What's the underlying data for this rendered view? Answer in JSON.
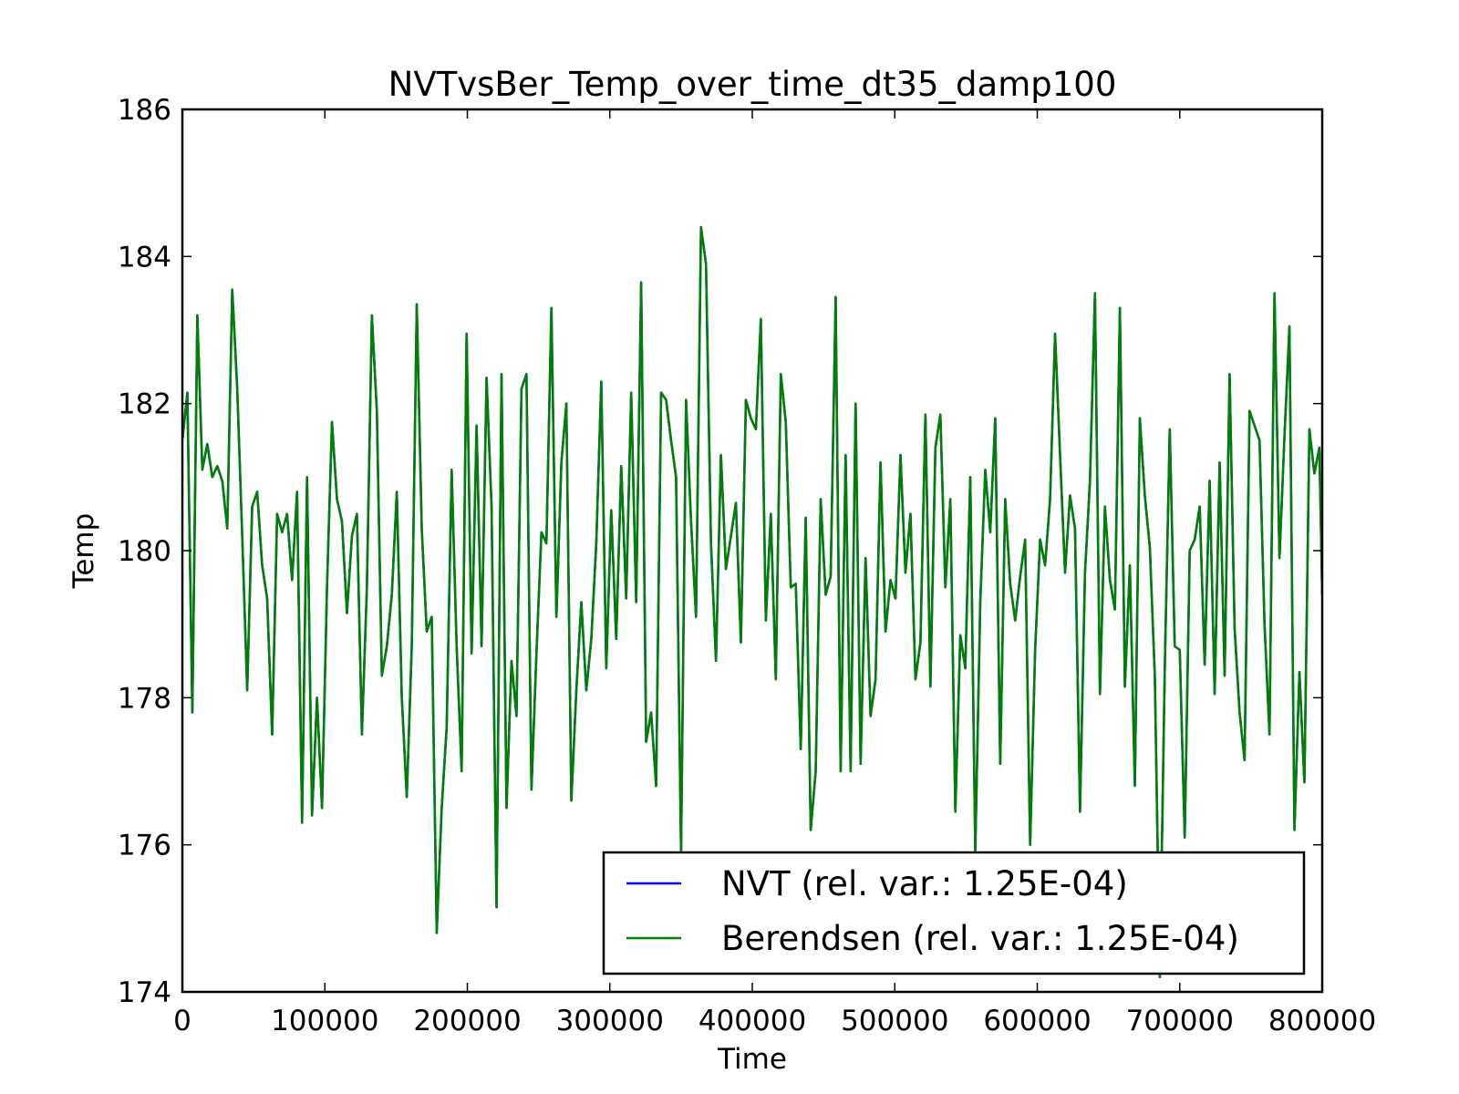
{
  "chart_data": {
    "type": "line",
    "title": "NVTvsBer_Temp_over_time_dt35_damp100",
    "xlabel": "Time",
    "ylabel": "Temp",
    "xlim": [
      0,
      800000
    ],
    "ylim": [
      174,
      186
    ],
    "xticks": [
      0,
      100000,
      200000,
      300000,
      400000,
      500000,
      600000,
      700000,
      800000
    ],
    "xtick_labels": [
      "0",
      "100000",
      "200000",
      "300000",
      "400000",
      "500000",
      "600000",
      "700000",
      "800000"
    ],
    "yticks": [
      174,
      176,
      178,
      180,
      182,
      184,
      186
    ],
    "ytick_labels": [
      "174",
      "176",
      "178",
      "180",
      "182",
      "184",
      "186"
    ],
    "grid": false,
    "legend_position": "lower-right",
    "x": [
      0,
      3500,
      7000,
      10500,
      14000,
      17500,
      21000,
      24500,
      28000,
      31500,
      35000,
      38500,
      42000,
      45500,
      49000,
      52500,
      56000,
      59500,
      63000,
      66500,
      70000,
      73500,
      77000,
      80500,
      84000,
      87500,
      91000,
      94500,
      98000,
      101500,
      105000,
      108500,
      112000,
      115500,
      119000,
      122500,
      126000,
      129500,
      133000,
      136500,
      140000,
      143500,
      147000,
      150500,
      154000,
      157500,
      161000,
      164500,
      168000,
      171500,
      175000,
      178500,
      182000,
      185500,
      189000,
      192500,
      196000,
      199500,
      203000,
      206500,
      210000,
      213500,
      217000,
      220500,
      224000,
      227500,
      231000,
      234500,
      238000,
      241500,
      245000,
      248500,
      252000,
      255500,
      259000,
      262500,
      266000,
      269500,
      273000,
      276500,
      280000,
      283500,
      287000,
      290500,
      294000,
      297500,
      301000,
      304500,
      308000,
      311500,
      315000,
      318500,
      322000,
      325500,
      329000,
      332500,
      336000,
      339500,
      343000,
      346500,
      350000,
      353500,
      357000,
      360500,
      364000,
      367500,
      371000,
      374500,
      378000,
      381500,
      385000,
      388500,
      392000,
      395500,
      399000,
      402500,
      406000,
      409500,
      413000,
      416500,
      420000,
      423500,
      427000,
      430500,
      434000,
      437500,
      441000,
      444500,
      448000,
      451500,
      455000,
      458500,
      462000,
      465500,
      469000,
      472500,
      476000,
      479500,
      483000,
      486500,
      490000,
      493500,
      497000,
      500500,
      504000,
      507500,
      511000,
      514500,
      518000,
      521500,
      525000,
      528500,
      532000,
      535500,
      539000,
      542500,
      546000,
      549500,
      553000,
      556500,
      560000,
      563500,
      567000,
      570500,
      574000,
      577500,
      581000,
      584500,
      588000,
      591500,
      595000,
      598500,
      602000,
      605500,
      609000,
      612500,
      616000,
      619500,
      623000,
      626500,
      630000,
      633500,
      637000,
      640500,
      644000,
      647500,
      651000,
      654500,
      658000,
      661500,
      665000,
      668500,
      672000,
      675500,
      679000,
      682500,
      686000,
      689500,
      693000,
      696500,
      700000,
      703500,
      707000,
      710500,
      714000,
      717500,
      721000,
      724500,
      728000,
      731500,
      735000,
      738500,
      742000,
      745500,
      749000,
      752500,
      756000,
      759500,
      763000,
      766500,
      770000,
      773500,
      777000,
      780500,
      784000,
      787500,
      791000,
      794500,
      798000,
      800000
    ],
    "series": [
      {
        "name": "NVT (rel. var.: 1.25E-04)",
        "color": "#0000ff",
        "values": [
          181.5,
          182.15,
          177.8,
          183.2,
          181.1,
          181.45,
          181.0,
          181.15,
          180.95,
          180.3,
          183.55,
          182.2,
          180.2,
          178.1,
          180.6,
          180.8,
          179.8,
          179.35,
          177.5,
          180.5,
          180.25,
          180.5,
          179.6,
          180.8,
          176.3,
          181.0,
          176.4,
          178.0,
          176.5,
          179.5,
          181.75,
          180.7,
          180.4,
          179.15,
          180.2,
          180.5,
          177.5,
          179.5,
          183.2,
          181.9,
          178.3,
          178.7,
          179.4,
          180.8,
          178.0,
          176.65,
          178.7,
          183.35,
          180.3,
          178.9,
          179.1,
          174.8,
          176.5,
          177.6,
          181.1,
          178.7,
          177.0,
          182.95,
          178.6,
          181.7,
          178.7,
          182.35,
          180.6,
          175.15,
          182.4,
          176.5,
          178.5,
          177.75,
          182.2,
          182.4,
          176.75,
          178.6,
          180.25,
          180.1,
          183.3,
          179.1,
          181.2,
          182.0,
          176.6,
          178.1,
          179.3,
          178.1,
          178.8,
          180.1,
          182.3,
          178.4,
          180.55,
          178.8,
          181.15,
          179.35,
          182.15,
          179.3,
          183.65,
          177.4,
          177.8,
          176.8,
          182.15,
          182.05,
          181.5,
          181.0,
          175.9,
          182.05,
          180.4,
          179.1,
          184.4,
          183.9,
          180.1,
          178.5,
          181.3,
          179.75,
          180.2,
          180.65,
          178.75,
          182.05,
          181.8,
          181.65,
          183.15,
          179.05,
          180.5,
          178.25,
          182.4,
          181.75,
          179.5,
          179.55,
          177.3,
          180.45,
          176.2,
          177.0,
          180.7,
          179.4,
          179.65,
          183.45,
          177.0,
          181.3,
          177.0,
          182.0,
          177.1,
          179.9,
          177.75,
          178.25,
          181.2,
          178.9,
          179.6,
          179.35,
          181.3,
          179.7,
          180.5,
          178.25,
          178.75,
          181.85,
          178.15,
          181.4,
          181.85,
          179.5,
          180.7,
          176.45,
          178.85,
          178.4,
          181.0,
          175.9,
          179.3,
          181.1,
          180.25,
          181.8,
          177.1,
          180.7,
          179.55,
          179.05,
          179.65,
          180.15,
          176.0,
          178.65,
          180.15,
          179.8,
          180.7,
          182.95,
          181.3,
          179.7,
          180.75,
          180.3,
          176.45,
          179.7,
          180.95,
          183.5,
          178.05,
          180.6,
          179.6,
          179.2,
          183.3,
          178.15,
          179.8,
          176.8,
          181.8,
          180.75,
          180.05,
          178.3,
          174.2,
          178.4,
          181.65,
          178.7,
          178.65,
          176.1,
          180.0,
          180.15,
          180.6,
          178.45,
          180.95,
          178.05,
          181.2,
          178.3,
          182.4,
          178.95,
          177.8,
          177.15,
          181.9,
          181.7,
          181.5,
          179.0,
          177.5,
          183.5,
          179.9,
          181.55,
          183.05,
          176.2,
          178.35,
          176.85,
          181.65,
          181.05,
          181.4,
          179.4
        ]
      },
      {
        "name": "Berendsen (rel. var.: 1.25E-04)",
        "color": "#008000",
        "values": [
          181.5,
          182.15,
          177.8,
          183.2,
          181.1,
          181.45,
          181.0,
          181.15,
          180.95,
          180.3,
          183.55,
          182.2,
          180.2,
          178.1,
          180.6,
          180.8,
          179.8,
          179.35,
          177.5,
          180.5,
          180.25,
          180.5,
          179.6,
          180.8,
          176.3,
          181.0,
          176.4,
          178.0,
          176.5,
          179.5,
          181.75,
          180.7,
          180.4,
          179.15,
          180.2,
          180.5,
          177.5,
          179.5,
          183.2,
          181.9,
          178.3,
          178.7,
          179.4,
          180.8,
          178.0,
          176.65,
          178.7,
          183.35,
          180.3,
          178.9,
          179.1,
          174.8,
          176.5,
          177.6,
          181.1,
          178.7,
          177.0,
          182.95,
          178.6,
          181.7,
          178.7,
          182.35,
          180.6,
          175.15,
          182.4,
          176.5,
          178.5,
          177.75,
          182.2,
          182.4,
          176.75,
          178.6,
          180.25,
          180.1,
          183.3,
          179.1,
          181.2,
          182.0,
          176.6,
          178.1,
          179.3,
          178.1,
          178.8,
          180.1,
          182.3,
          178.4,
          180.55,
          178.8,
          181.15,
          179.35,
          182.15,
          179.3,
          183.65,
          177.4,
          177.8,
          176.8,
          182.15,
          182.05,
          181.5,
          181.0,
          175.9,
          182.05,
          180.4,
          179.1,
          184.4,
          183.9,
          180.1,
          178.5,
          181.3,
          179.75,
          180.2,
          180.65,
          178.75,
          182.05,
          181.8,
          181.65,
          183.15,
          179.05,
          180.5,
          178.25,
          182.4,
          181.75,
          179.5,
          179.55,
          177.3,
          180.45,
          176.2,
          177.0,
          180.7,
          179.4,
          179.65,
          183.45,
          177.0,
          181.3,
          177.0,
          182.0,
          177.1,
          179.9,
          177.75,
          178.25,
          181.2,
          178.9,
          179.6,
          179.35,
          181.3,
          179.7,
          180.5,
          178.25,
          178.75,
          181.85,
          178.15,
          181.4,
          181.85,
          179.5,
          180.7,
          176.45,
          178.85,
          178.4,
          181.0,
          175.9,
          179.3,
          181.1,
          180.25,
          181.8,
          177.1,
          180.7,
          179.55,
          179.05,
          179.65,
          180.15,
          176.0,
          178.65,
          180.15,
          179.8,
          180.7,
          182.95,
          181.3,
          179.7,
          180.75,
          180.3,
          176.45,
          179.7,
          180.95,
          183.5,
          178.05,
          180.6,
          179.6,
          179.2,
          183.3,
          178.15,
          179.8,
          176.8,
          181.8,
          180.75,
          180.05,
          178.3,
          174.2,
          178.4,
          181.65,
          178.7,
          178.65,
          176.1,
          180.0,
          180.15,
          180.6,
          178.45,
          180.95,
          178.05,
          181.2,
          178.3,
          182.4,
          178.95,
          177.8,
          177.15,
          181.9,
          181.7,
          181.5,
          179.0,
          177.5,
          183.5,
          179.9,
          181.55,
          183.05,
          176.2,
          178.35,
          176.85,
          181.65,
          181.05,
          181.4,
          179.4
        ]
      }
    ]
  }
}
